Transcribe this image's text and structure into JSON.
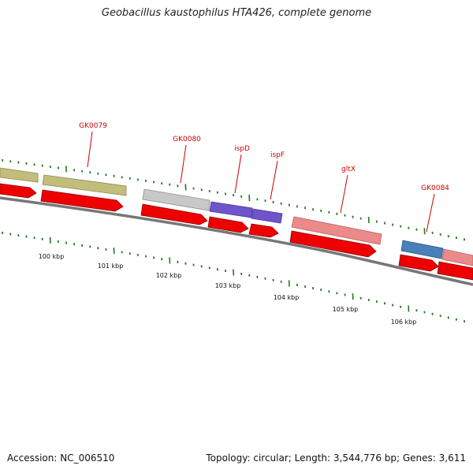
{
  "title": "Geobacillus kaustophilus HTA426, complete genome",
  "accession_text": "Accession: NC_006510",
  "summary_text": "Topology: circular; Length: 3,544,776 bp; Genes: 3,611",
  "colors": {
    "cds_arrow": "#ee0000",
    "backbone": "#777777",
    "gc_tick": "#227722",
    "gene_label": "#cc0000",
    "olive": "#c2bd7a",
    "grey": "#c8c8c8",
    "purple": "#6f55cc",
    "pink": "#ec8a8a",
    "blue": "#4a80b8"
  },
  "genes": [
    {
      "label": "GK0079",
      "color": "olive"
    },
    {
      "label": "GK0080",
      "color": "grey"
    },
    {
      "label": "ispD",
      "color": "purple"
    },
    {
      "label": "ispF",
      "color": "purple"
    },
    {
      "label": "gltX",
      "color": "pink"
    },
    {
      "label": "GK0084",
      "color": "blue"
    }
  ],
  "scale_ticks": [
    "100 kbp",
    "101 kbp",
    "102 kbp",
    "103 kbp",
    "104 kbp",
    "105 kbp",
    "106 kbp"
  ]
}
